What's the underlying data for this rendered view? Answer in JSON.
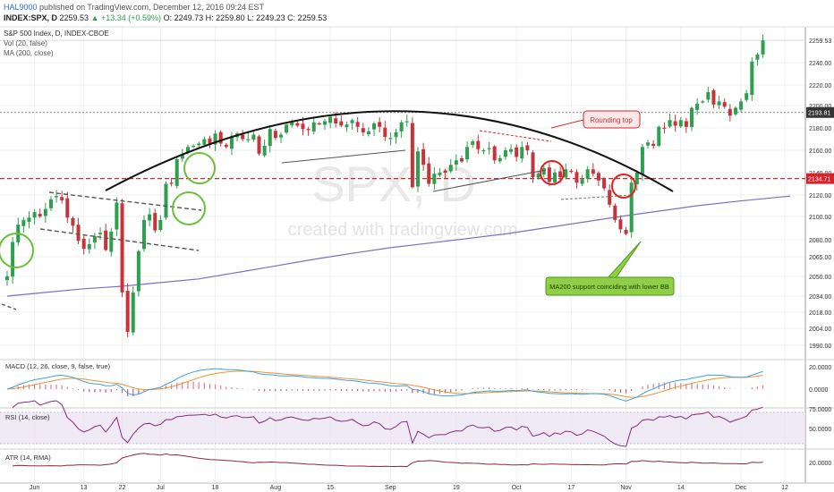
{
  "header": {
    "user": "HAL9000",
    "published": "published on TradingView.com, December 12, 2016 09:24 EST",
    "symbol": "INDEX:SPX, D",
    "last": "2259.53",
    "change": "▲ +13.34 (+0.59%)",
    "ohlc": "O: 2249.73 H: 2259.80 L: 2249.23 C: 2259.53"
  },
  "legend": {
    "title": "S&P 500 Index, D, INDEX-CBOE",
    "vol": "Vol (20, false)",
    "ma": "MA (200, close)"
  },
  "watermark": {
    "symbol": "SPX, D",
    "text": "created with tradingview.com"
  },
  "annotations": {
    "rounding_top": "Rounding top",
    "ma200_note": "MA200 support coinciding with lower BB"
  },
  "price_labels": {
    "last": "2259.53",
    "resistance": "2193.81",
    "support": "2134.71"
  },
  "colors": {
    "up": "#2e9e4f",
    "down": "#c8333a",
    "ma": "#7b6fc4",
    "support_line": "#d8232a",
    "resistance_line": "#888888",
    "circle_green": "#6abf3d",
    "circle_red": "#e02020",
    "macd": "#3ba3e0",
    "signal": "#f0922e",
    "rsi": "#8b2a7a",
    "rsi_band": "#eadff2",
    "atr": "#8b2a3a"
  },
  "panes": {
    "macd": {
      "label": "MACD (12, 26, close, 9, false, true)",
      "ticks": [
        "20.0000",
        "0.0000"
      ]
    },
    "rsi": {
      "label": "RSI (14, close)",
      "ticks": [
        "75.0000",
        "50.0000"
      ]
    },
    "atr": {
      "label": "ATR (14, RMA)",
      "ticks": [
        "20.0000"
      ]
    }
  },
  "chart_data": {
    "type": "candlestick",
    "ylim": [
      1980,
      2262
    ],
    "y_ticks": [
      1990,
      2004,
      2018,
      2034,
      2050,
      2065,
      2080,
      2100,
      2120,
      2140,
      2160,
      2180,
      2200,
      2220,
      2240,
      2259.53
    ],
    "y_tick_labels": [
      "1990.00",
      "2004.00",
      "2018.00",
      "2034.00",
      "2050.00",
      "2065.00",
      "2080.00",
      "2100.00",
      "2120.00",
      "2140.00",
      "2160.00",
      "2180.00",
      "2200.00",
      "2220.00",
      "2240.00",
      "2259.53"
    ],
    "x_tick_labels": [
      "Jun",
      "13",
      "22",
      "Jul",
      "18",
      "Aug",
      "15",
      "Sep",
      "19",
      "Oct",
      "17",
      "Nov",
      "14",
      "Dec",
      "12"
    ],
    "x_tick_bar_index": [
      5,
      14,
      21,
      28,
      38,
      49,
      59,
      70,
      82,
      93,
      103,
      113,
      123,
      134,
      142
    ],
    "support": 2134.71,
    "resistance": 2193.81,
    "closes": [
      2050,
      2078,
      2093,
      2097,
      2099,
      2104,
      2100,
      2107,
      2116,
      2119,
      2115,
      2099,
      2092,
      2079,
      2072,
      2076,
      2083,
      2086,
      2071,
      2087,
      2113,
      2037,
      2001,
      2037,
      2070,
      2097,
      2102,
      2088,
      2097,
      2130,
      2130,
      2152,
      2156,
      2163,
      2164,
      2166,
      2170,
      2166,
      2175,
      2166,
      2163,
      2173,
      2175,
      2170,
      2170,
      2174,
      2157,
      2164,
      2179,
      2171,
      2174,
      2183,
      2186,
      2182,
      2179,
      2178,
      2185,
      2184,
      2186,
      2190,
      2184,
      2182,
      2183,
      2187,
      2181,
      2176,
      2177,
      2184,
      2181,
      2172,
      2171,
      2176,
      2185,
      2186,
      2127,
      2159,
      2147,
      2130,
      2139,
      2140,
      2140,
      2147,
      2151,
      2150,
      2163,
      2168,
      2161,
      2160,
      2162,
      2151,
      2153,
      2160,
      2161,
      2154,
      2163,
      2160,
      2136,
      2139,
      2144,
      2132,
      2140,
      2136,
      2143,
      2141,
      2131,
      2134,
      2143,
      2139,
      2133,
      2126,
      2111,
      2097,
      2089,
      2085,
      2131,
      2140,
      2163,
      2167,
      2164,
      2181,
      2180,
      2187,
      2182,
      2187,
      2181,
      2198,
      2202,
      2204,
      2213,
      2201,
      2204,
      2199,
      2191,
      2198,
      2204,
      2212,
      2241,
      2247,
      2259.53
    ],
    "ma200": [
      2034,
      2037,
      2040,
      2042,
      2045,
      2048,
      2053,
      2058,
      2063,
      2068,
      2073,
      2077,
      2081,
      2085,
      2090,
      2095,
      2100,
      2105,
      2110,
      2114,
      2119
    ],
    "ma200_bar_index": [
      0,
      7,
      14,
      21,
      28,
      35,
      42,
      49,
      56,
      63,
      70,
      77,
      84,
      91,
      98,
      105,
      112,
      119,
      126,
      133,
      143
    ]
  }
}
